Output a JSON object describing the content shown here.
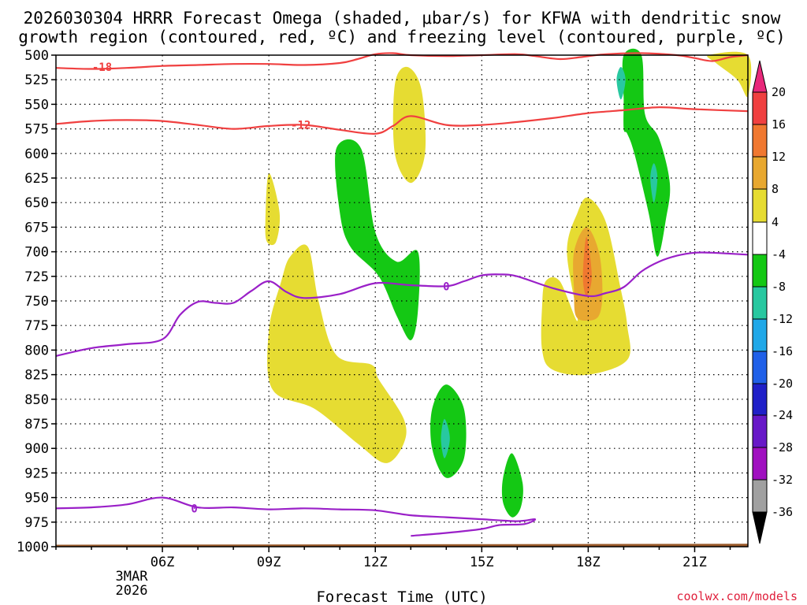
{
  "chart_data": {
    "type": "time-height contour",
    "title_lines": [
      "2026030304 HRRR Forecast Omega (shaded, μbar/s) for KFWA with dendritic snow",
      "growth region (contoured, red, ºC) and freezing level (contoured, purple, ºC)"
    ],
    "xlabel": "Forecast Time (UTC)",
    "ylabel": "Pressure (hPa)",
    "y_ticks": [
      500,
      525,
      550,
      575,
      600,
      625,
      650,
      675,
      700,
      725,
      750,
      775,
      800,
      825,
      850,
      875,
      900,
      925,
      950,
      975,
      1000
    ],
    "ylim": [
      1000,
      500
    ],
    "xlim_hours_utc": [
      3.0,
      22.5
    ],
    "x_ticks": [
      {
        "hour": 6,
        "label": "06Z"
      },
      {
        "hour": 9,
        "label": "09Z"
      },
      {
        "hour": 12,
        "label": "12Z"
      },
      {
        "hour": 15,
        "label": "15Z"
      },
      {
        "hour": 18,
        "label": "18Z"
      },
      {
        "hour": 21,
        "label": "21Z"
      }
    ],
    "date_label": [
      "3MAR",
      "2026"
    ],
    "colorbar": {
      "labels": [
        "20",
        "16",
        "12",
        "8",
        "4",
        "-4",
        "-8",
        "-12",
        "-16",
        "-20",
        "-24",
        "-28",
        "-32",
        "-36"
      ],
      "colors": [
        "#e8287a",
        "#f04040",
        "#f07830",
        "#e8a830",
        "#e6dc32",
        "#ffffff",
        "#14c814",
        "#28c8a0",
        "#20a8e8",
        "#2060e8",
        "#2020c8",
        "#6818c8",
        "#a010c0",
        "#a0a0a0",
        "#000000"
      ]
    },
    "shaded_regions": [
      {
        "name": "yellow-upper-13z",
        "level": 4,
        "color": "#e6dc32",
        "points": [
          [
            12.55,
            530
          ],
          [
            12.9,
            512
          ],
          [
            13.3,
            535
          ],
          [
            13.4,
            600
          ],
          [
            13.0,
            630
          ],
          [
            12.55,
            600
          ]
        ]
      },
      {
        "name": "yellow-09z-small",
        "level": 4,
        "color": "#e6dc32",
        "points": [
          [
            8.9,
            670
          ],
          [
            9.0,
            620
          ],
          [
            9.3,
            660
          ],
          [
            9.2,
            690
          ],
          [
            8.95,
            690
          ]
        ]
      },
      {
        "name": "yellow-10z-large",
        "level": 4,
        "color": "#e6dc32",
        "points": [
          [
            9.6,
            705
          ],
          [
            10.1,
            695
          ],
          [
            10.4,
            750
          ],
          [
            10.9,
            805
          ],
          [
            11.9,
            815
          ],
          [
            12.1,
            830
          ],
          [
            12.8,
            870
          ],
          [
            12.8,
            895
          ],
          [
            12.3,
            915
          ],
          [
            11.5,
            895
          ],
          [
            10.3,
            860
          ],
          [
            9.1,
            840
          ],
          [
            9.0,
            780
          ],
          [
            9.35,
            730
          ]
        ]
      },
      {
        "name": "yellow-17z",
        "level": 4,
        "color": "#e6dc32",
        "points": [
          [
            16.8,
            730
          ],
          [
            17.2,
            730
          ],
          [
            17.7,
            770
          ],
          [
            17.4,
            700
          ],
          [
            17.7,
            660
          ],
          [
            18.0,
            645
          ],
          [
            18.5,
            670
          ],
          [
            18.9,
            735
          ],
          [
            19.1,
            775
          ],
          [
            19.1,
            810
          ],
          [
            18.0,
            825
          ],
          [
            17.0,
            820
          ],
          [
            16.7,
            800
          ],
          [
            16.7,
            755
          ]
        ]
      },
      {
        "name": "orange-18z",
        "level": 8,
        "color": "#e8a830",
        "points": [
          [
            17.6,
            740
          ],
          [
            17.6,
            700
          ],
          [
            17.95,
            675
          ],
          [
            18.3,
            700
          ],
          [
            18.4,
            740
          ],
          [
            18.3,
            765
          ],
          [
            17.95,
            770
          ],
          [
            17.65,
            765
          ]
        ]
      },
      {
        "name": "deeporange-18z",
        "level": 12,
        "color": "#f07830",
        "points": [
          [
            17.85,
            725
          ],
          [
            17.95,
            685
          ],
          [
            18.1,
            725
          ],
          [
            17.95,
            745
          ]
        ]
      },
      {
        "name": "yellow-22z-corner",
        "level": 4,
        "color": "#e6dc32",
        "points": [
          [
            21.4,
            500
          ],
          [
            22.5,
            500
          ],
          [
            22.5,
            542
          ],
          [
            22.2,
            525
          ],
          [
            21.6,
            508
          ]
        ]
      },
      {
        "name": "green-12z",
        "level": -4,
        "color": "#14c814",
        "points": [
          [
            10.9,
            595
          ],
          [
            11.6,
            595
          ],
          [
            12.0,
            680
          ],
          [
            12.6,
            710
          ],
          [
            13.2,
            700
          ],
          [
            13.2,
            760
          ],
          [
            13.0,
            790
          ],
          [
            12.6,
            765
          ],
          [
            12.1,
            725
          ],
          [
            11.3,
            695
          ],
          [
            11.0,
            660
          ]
        ]
      },
      {
        "name": "green-19z",
        "level": -4,
        "color": "#14c814",
        "points": [
          [
            19.0,
            500
          ],
          [
            19.5,
            500
          ],
          [
            19.6,
            560
          ],
          [
            20.0,
            585
          ],
          [
            20.3,
            630
          ],
          [
            20.2,
            665
          ],
          [
            19.95,
            705
          ],
          [
            19.7,
            660
          ],
          [
            19.3,
            600
          ],
          [
            19.1,
            580
          ],
          [
            19.0,
            575
          ],
          [
            19.0,
            545
          ]
        ]
      },
      {
        "name": "teal-19z",
        "level": -8,
        "color": "#28c8a0",
        "points": [
          [
            18.92,
            512
          ],
          [
            19.05,
            525
          ],
          [
            18.92,
            545
          ],
          [
            18.8,
            525
          ]
        ]
      },
      {
        "name": "teal-20z",
        "level": -8,
        "color": "#28c8a0",
        "points": [
          [
            19.85,
            610
          ],
          [
            19.95,
            625
          ],
          [
            19.85,
            650
          ],
          [
            19.75,
            625
          ]
        ]
      },
      {
        "name": "green-14z",
        "level": -4,
        "color": "#14c814",
        "points": [
          [
            13.6,
            860
          ],
          [
            14.0,
            835
          ],
          [
            14.5,
            860
          ],
          [
            14.5,
            910
          ],
          [
            14.0,
            930
          ],
          [
            13.6,
            900
          ]
        ]
      },
      {
        "name": "teal-14z",
        "level": -8,
        "color": "#28c8a0",
        "points": [
          [
            13.95,
            870
          ],
          [
            14.1,
            890
          ],
          [
            13.95,
            910
          ],
          [
            13.85,
            890
          ]
        ]
      },
      {
        "name": "green-16z",
        "level": -4,
        "color": "#14c814",
        "points": [
          [
            15.6,
            930
          ],
          [
            15.85,
            905
          ],
          [
            16.15,
            935
          ],
          [
            16.1,
            960
          ],
          [
            15.85,
            970
          ],
          [
            15.6,
            955
          ]
        ]
      }
    ],
    "terrain": {
      "color": "#9a5a2a",
      "points": [
        [
          3.0,
          998
        ],
        [
          22.5,
          997
        ],
        [
          22.5,
          1000
        ],
        [
          3.0,
          1000
        ]
      ]
    },
    "contours": [
      {
        "name": "dgz-minus18",
        "color": "#f04040",
        "label": "-18",
        "label_at": [
          4.3,
          512
        ],
        "points": [
          [
            3.0,
            513
          ],
          [
            4.0,
            514
          ],
          [
            5.0,
            513
          ],
          [
            6.0,
            511
          ],
          [
            7.0,
            510
          ],
          [
            8.0,
            509
          ],
          [
            9.0,
            509
          ],
          [
            10.0,
            510
          ],
          [
            11.0,
            508
          ],
          [
            11.5,
            504
          ],
          [
            12.0,
            499
          ],
          [
            12.5,
            498
          ],
          [
            13.0,
            500
          ],
          [
            14.0,
            501
          ],
          [
            15.0,
            500
          ],
          [
            16.0,
            499
          ],
          [
            16.5,
            501
          ],
          [
            17.2,
            504
          ],
          [
            17.8,
            502
          ],
          [
            18.5,
            499
          ],
          [
            19.5,
            498
          ],
          [
            20.5,
            500
          ],
          [
            21.0,
            503
          ],
          [
            21.5,
            506
          ],
          [
            22.0,
            502
          ],
          [
            22.5,
            500
          ]
        ]
      },
      {
        "name": "dgz-minus12",
        "color": "#f04040",
        "label": "-12",
        "label_at": [
          9.9,
          571
        ],
        "points": [
          [
            3.0,
            570
          ],
          [
            4.0,
            567
          ],
          [
            5.0,
            566
          ],
          [
            6.0,
            567
          ],
          [
            7.0,
            571
          ],
          [
            8.0,
            575
          ],
          [
            9.0,
            572
          ],
          [
            10.0,
            571
          ],
          [
            11.0,
            576
          ],
          [
            12.0,
            580
          ],
          [
            12.5,
            572
          ],
          [
            13.0,
            562
          ],
          [
            14.0,
            571
          ],
          [
            15.0,
            571
          ],
          [
            16.0,
            568
          ],
          [
            17.0,
            564
          ],
          [
            18.0,
            559
          ],
          [
            19.0,
            556
          ],
          [
            20.0,
            553
          ],
          [
            21.0,
            555
          ],
          [
            22.5,
            557
          ]
        ]
      },
      {
        "name": "freezing-level-upper",
        "color": "#9a20c8",
        "label": "0",
        "label_at": [
          14.0,
          735
        ],
        "points": [
          [
            3.0,
            806
          ],
          [
            4.0,
            798
          ],
          [
            5.0,
            794
          ],
          [
            6.0,
            789
          ],
          [
            6.5,
            764
          ],
          [
            7.0,
            751
          ],
          [
            7.5,
            752
          ],
          [
            8.0,
            752
          ],
          [
            8.5,
            740
          ],
          [
            9.0,
            730
          ],
          [
            9.5,
            741
          ],
          [
            10.0,
            747
          ],
          [
            11.0,
            743
          ],
          [
            12.0,
            732
          ],
          [
            13.0,
            734
          ],
          [
            14.0,
            735
          ],
          [
            14.5,
            730
          ],
          [
            15.0,
            724
          ],
          [
            15.5,
            723
          ],
          [
            16.0,
            725
          ],
          [
            17.0,
            737
          ],
          [
            18.0,
            745
          ],
          [
            18.5,
            742
          ],
          [
            19.0,
            736
          ],
          [
            19.5,
            720
          ],
          [
            20.0,
            710
          ],
          [
            20.5,
            704
          ],
          [
            21.0,
            701
          ],
          [
            21.5,
            701
          ],
          [
            22.5,
            703
          ]
        ]
      },
      {
        "name": "freezing-level-lower",
        "color": "#9a20c8",
        "label": "0",
        "label_at": [
          6.9,
          961
        ],
        "points": [
          [
            3.0,
            961
          ],
          [
            4.0,
            960
          ],
          [
            5.0,
            957
          ],
          [
            6.0,
            950
          ],
          [
            7.0,
            960
          ],
          [
            8.0,
            960
          ],
          [
            9.0,
            962
          ],
          [
            10.0,
            961
          ],
          [
            11.0,
            962
          ],
          [
            12.0,
            963
          ],
          [
            13.0,
            968
          ],
          [
            14.0,
            970
          ],
          [
            15.0,
            972
          ],
          [
            16.0,
            974
          ],
          [
            16.5,
            972
          ],
          [
            16.2,
            977
          ],
          [
            15.5,
            978
          ],
          [
            15.0,
            982
          ],
          [
            14.0,
            986
          ],
          [
            13.0,
            989
          ]
        ]
      }
    ]
  },
  "credit": "coolwx.com/models"
}
